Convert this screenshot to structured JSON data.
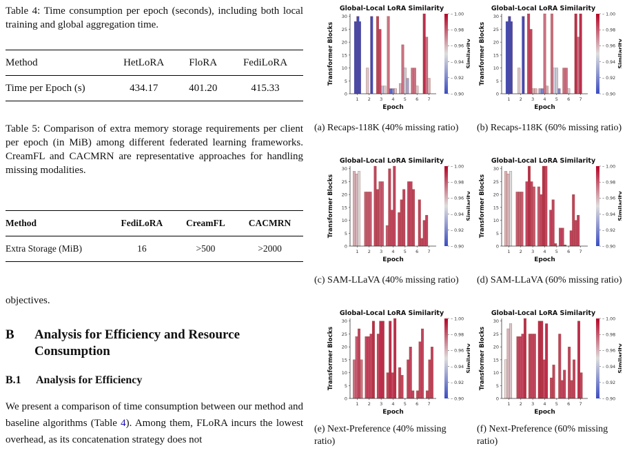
{
  "table4": {
    "caption": "Table 4: Time consumption per epoch (seconds), including both local training and global aggregation time.",
    "headers": [
      "Method",
      "HetLoRA",
      "FloRA",
      "FediLoRA"
    ],
    "row_label": "Time per Epoch (s)",
    "values": [
      "434.17",
      "401.20",
      "415.33"
    ]
  },
  "table5": {
    "caption": "Table 5: Comparison of extra memory storage requirements per client per epoch (in MiB) among different federated learning frameworks. CreamFL and CACMRN are representative approaches for handling missing modalities.",
    "headers": [
      "Method",
      "FediLoRA",
      "CreamFL",
      "CACMRN"
    ],
    "row_label": "Extra Storage (MiB)",
    "values": [
      "16",
      ">500",
      ">2000"
    ]
  },
  "body": {
    "objectives": "objectives.",
    "section_b_num": "B",
    "section_b_title": "Analysis for Efficiency and Resource Consumption",
    "section_b1_num": "B.1",
    "section_b1_title": "Analysis for Efficiency",
    "para_1": "We present a comparison of time consumption between our method and baseline algorithms (Table ",
    "para_ref": "4",
    "para_2": "). Among them, FLoRA incurs the lowest overhead, as its concatenation strategy does not"
  },
  "chart_common": {
    "title": "Global-Local LoRA Similarity",
    "xlabel": "Epoch",
    "ylabel": "Transformer Blocks",
    "colorbar_label": "Similarity",
    "colorbar_ticks": [
      "1.00",
      "0.98",
      "0.96",
      "0.94",
      "0.92",
      "0.90"
    ],
    "x_ticks": [
      "1",
      "2",
      "3",
      "4",
      "5",
      "6",
      "7"
    ],
    "y_ticks": [
      "0",
      "5",
      "10",
      "15",
      "20",
      "25",
      "30"
    ]
  },
  "chart_data": [
    {
      "type": "bar",
      "caption": "(a) Recaps-118K (40% missing ratio)",
      "ylim": [
        0,
        31
      ],
      "colorscale": [
        0.9,
        1.0
      ],
      "bars": [
        {
          "x": 0.65,
          "y": 28,
          "sim": 0.9
        },
        {
          "x": 0.85,
          "y": 30,
          "sim": 0.9
        },
        {
          "x": 1.0,
          "y": 28,
          "sim": 0.9
        },
        {
          "x": 1.65,
          "y": 10,
          "sim": 0.955
        },
        {
          "x": 2.0,
          "y": 30,
          "sim": 0.9
        },
        {
          "x": 2.5,
          "y": 30,
          "sim": 0.985
        },
        {
          "x": 2.7,
          "y": 25,
          "sim": 0.985
        },
        {
          "x": 2.9,
          "y": 3,
          "sim": 0.94
        },
        {
          "x": 3.1,
          "y": 3,
          "sim": 0.955
        },
        {
          "x": 3.4,
          "y": 30,
          "sim": 0.975
        },
        {
          "x": 3.6,
          "y": 2,
          "sim": 0.91
        },
        {
          "x": 3.8,
          "y": 2,
          "sim": 0.92
        },
        {
          "x": 4.0,
          "y": 2,
          "sim": 0.955
        },
        {
          "x": 4.4,
          "y": 4,
          "sim": 0.96
        },
        {
          "x": 4.6,
          "y": 19,
          "sim": 0.975
        },
        {
          "x": 4.8,
          "y": 10,
          "sim": 0.945
        },
        {
          "x": 5.0,
          "y": 6,
          "sim": 0.93
        },
        {
          "x": 5.4,
          "y": 10,
          "sim": 0.975
        },
        {
          "x": 5.6,
          "y": 10,
          "sim": 0.975
        },
        {
          "x": 5.8,
          "y": 3,
          "sim": 0.955
        },
        {
          "x": 6.4,
          "y": 31,
          "sim": 0.99
        },
        {
          "x": 6.6,
          "y": 22,
          "sim": 0.975
        },
        {
          "x": 6.8,
          "y": 6,
          "sim": 0.96
        }
      ]
    },
    {
      "type": "bar",
      "caption": "(b) Recaps-118K (60% missing ratio)",
      "ylim": [
        0,
        31
      ],
      "colorscale": [
        0.9,
        1.0
      ],
      "bars": [
        {
          "x": 0.65,
          "y": 28,
          "sim": 0.9
        },
        {
          "x": 0.85,
          "y": 30,
          "sim": 0.9
        },
        {
          "x": 1.0,
          "y": 28,
          "sim": 0.9
        },
        {
          "x": 1.65,
          "y": 10,
          "sim": 0.955
        },
        {
          "x": 2.0,
          "y": 30,
          "sim": 0.9
        },
        {
          "x": 2.45,
          "y": 31,
          "sim": 0.985
        },
        {
          "x": 2.65,
          "y": 25,
          "sim": 0.985
        },
        {
          "x": 2.85,
          "y": 2,
          "sim": 0.96
        },
        {
          "x": 3.05,
          "y": 2,
          "sim": 0.96
        },
        {
          "x": 3.4,
          "y": 2,
          "sim": 0.93
        },
        {
          "x": 3.6,
          "y": 2,
          "sim": 0.92
        },
        {
          "x": 3.8,
          "y": 31,
          "sim": 0.975
        },
        {
          "x": 4.0,
          "y": 3,
          "sim": 0.96
        },
        {
          "x": 4.4,
          "y": 31,
          "sim": 0.975
        },
        {
          "x": 4.6,
          "y": 10,
          "sim": 0.945
        },
        {
          "x": 4.8,
          "y": 10,
          "sim": 0.945
        },
        {
          "x": 5.0,
          "y": 2,
          "sim": 0.92
        },
        {
          "x": 5.4,
          "y": 10,
          "sim": 0.975
        },
        {
          "x": 5.6,
          "y": 10,
          "sim": 0.975
        },
        {
          "x": 5.8,
          "y": 2,
          "sim": 0.955
        },
        {
          "x": 6.4,
          "y": 31,
          "sim": 0.99
        },
        {
          "x": 6.6,
          "y": 22,
          "sim": 0.975
        },
        {
          "x": 6.8,
          "y": 31,
          "sim": 0.99
        }
      ]
    },
    {
      "type": "bar",
      "caption": "(c) SAM-LLaVA (40% missing ratio)",
      "ylim": [
        0,
        31
      ],
      "colorscale": [
        0.9,
        1.0
      ],
      "bars": [
        {
          "x": 0.55,
          "y": 29,
          "sim": 0.96
        },
        {
          "x": 0.75,
          "y": 28,
          "sim": 0.96
        },
        {
          "x": 0.95,
          "y": 29,
          "sim": 0.95
        },
        {
          "x": 1.5,
          "y": 21,
          "sim": 0.98
        },
        {
          "x": 1.7,
          "y": 21,
          "sim": 0.98
        },
        {
          "x": 1.9,
          "y": 21,
          "sim": 0.98
        },
        {
          "x": 2.3,
          "y": 31,
          "sim": 0.985
        },
        {
          "x": 2.5,
          "y": 22,
          "sim": 0.985
        },
        {
          "x": 2.7,
          "y": 25,
          "sim": 0.98
        },
        {
          "x": 2.9,
          "y": 25,
          "sim": 0.98
        },
        {
          "x": 3.3,
          "y": 8,
          "sim": 0.98
        },
        {
          "x": 3.5,
          "y": 30,
          "sim": 0.985
        },
        {
          "x": 3.7,
          "y": 14,
          "sim": 0.985
        },
        {
          "x": 3.9,
          "y": 31,
          "sim": 0.985
        },
        {
          "x": 4.3,
          "y": 13,
          "sim": 0.985
        },
        {
          "x": 4.5,
          "y": 18,
          "sim": 0.985
        },
        {
          "x": 4.7,
          "y": 22,
          "sim": 0.985
        },
        {
          "x": 5.1,
          "y": 25,
          "sim": 0.985
        },
        {
          "x": 5.3,
          "y": 25,
          "sim": 0.985
        },
        {
          "x": 5.5,
          "y": 22,
          "sim": 0.985
        },
        {
          "x": 6.0,
          "y": 18,
          "sim": 0.985
        },
        {
          "x": 6.2,
          "y": 3,
          "sim": 0.985
        },
        {
          "x": 6.4,
          "y": 10,
          "sim": 0.985
        },
        {
          "x": 6.6,
          "y": 12,
          "sim": 0.985
        }
      ]
    },
    {
      "type": "bar",
      "caption": "(d) SAM-LLaVA (60% missing ratio)",
      "ylim": [
        0,
        31
      ],
      "colorscale": [
        0.9,
        1.0
      ],
      "bars": [
        {
          "x": 0.55,
          "y": 29,
          "sim": 0.96
        },
        {
          "x": 0.75,
          "y": 28,
          "sim": 0.96
        },
        {
          "x": 0.95,
          "y": 29,
          "sim": 0.95
        },
        {
          "x": 1.5,
          "y": 21,
          "sim": 0.98
        },
        {
          "x": 1.7,
          "y": 21,
          "sim": 0.98
        },
        {
          "x": 1.9,
          "y": 21,
          "sim": 0.98
        },
        {
          "x": 2.3,
          "y": 25,
          "sim": 0.985
        },
        {
          "x": 2.5,
          "y": 32,
          "sim": 0.99
        },
        {
          "x": 2.7,
          "y": 25,
          "sim": 0.985
        },
        {
          "x": 2.9,
          "y": 23,
          "sim": 0.98
        },
        {
          "x": 3.3,
          "y": 23,
          "sim": 0.98
        },
        {
          "x": 3.5,
          "y": 20,
          "sim": 0.985
        },
        {
          "x": 3.7,
          "y": 32,
          "sim": 0.99
        },
        {
          "x": 3.9,
          "y": 31,
          "sim": 0.985
        },
        {
          "x": 4.3,
          "y": 14,
          "sim": 0.985
        },
        {
          "x": 4.5,
          "y": 18,
          "sim": 0.985
        },
        {
          "x": 4.7,
          "y": 1,
          "sim": 0.985
        },
        {
          "x": 5.1,
          "y": 7,
          "sim": 0.985
        },
        {
          "x": 5.3,
          "y": 7,
          "sim": 0.985
        },
        {
          "x": 5.5,
          "y": 0.5,
          "sim": 0.985
        },
        {
          "x": 6.0,
          "y": 6,
          "sim": 0.985
        },
        {
          "x": 6.2,
          "y": 20,
          "sim": 0.985
        },
        {
          "x": 6.4,
          "y": 10,
          "sim": 0.985
        },
        {
          "x": 6.6,
          "y": 12,
          "sim": 0.985
        }
      ]
    },
    {
      "type": "bar",
      "caption": "(e) Next-Preference (40% missing ratio)",
      "ylim": [
        0,
        31
      ],
      "colorscale": [
        0.9,
        1.0
      ],
      "bars": [
        {
          "x": 0.55,
          "y": 15,
          "sim": 0.975
        },
        {
          "x": 0.75,
          "y": 24,
          "sim": 0.98
        },
        {
          "x": 0.95,
          "y": 27,
          "sim": 0.985
        },
        {
          "x": 1.15,
          "y": 15,
          "sim": 0.975
        },
        {
          "x": 1.55,
          "y": 24,
          "sim": 0.985
        },
        {
          "x": 1.75,
          "y": 24,
          "sim": 0.985
        },
        {
          "x": 1.95,
          "y": 25,
          "sim": 0.985
        },
        {
          "x": 2.15,
          "y": 30,
          "sim": 0.99
        },
        {
          "x": 2.55,
          "y": 25,
          "sim": 0.985
        },
        {
          "x": 2.75,
          "y": 30,
          "sim": 0.99
        },
        {
          "x": 2.95,
          "y": 30,
          "sim": 0.99
        },
        {
          "x": 3.35,
          "y": 10,
          "sim": 0.985
        },
        {
          "x": 3.55,
          "y": 30,
          "sim": 0.99
        },
        {
          "x": 3.75,
          "y": 10,
          "sim": 0.985
        },
        {
          "x": 3.95,
          "y": 31,
          "sim": 0.99
        },
        {
          "x": 4.35,
          "y": 12,
          "sim": 0.985
        },
        {
          "x": 4.55,
          "y": 9,
          "sim": 0.985
        },
        {
          "x": 5.05,
          "y": 15,
          "sim": 0.985
        },
        {
          "x": 5.25,
          "y": 20,
          "sim": 0.985
        },
        {
          "x": 5.45,
          "y": 3,
          "sim": 0.985
        },
        {
          "x": 5.85,
          "y": 3,
          "sim": 0.985
        },
        {
          "x": 6.05,
          "y": 22,
          "sim": 0.985
        },
        {
          "x": 6.25,
          "y": 27,
          "sim": 0.985
        },
        {
          "x": 6.65,
          "y": 3,
          "sim": 0.985
        },
        {
          "x": 6.85,
          "y": 15,
          "sim": 0.985
        },
        {
          "x": 7.05,
          "y": 20,
          "sim": 0.985
        }
      ]
    },
    {
      "type": "bar",
      "caption": "(f) Next-Preference (60% missing ratio)",
      "ylim": [
        0,
        31
      ],
      "colorscale": [
        0.9,
        1.0
      ],
      "bars": [
        {
          "x": 0.55,
          "y": 15,
          "sim": 0.95
        },
        {
          "x": 0.75,
          "y": 27,
          "sim": 0.96
        },
        {
          "x": 0.95,
          "y": 29,
          "sim": 0.955
        },
        {
          "x": 1.55,
          "y": 24,
          "sim": 0.985
        },
        {
          "x": 1.75,
          "y": 24,
          "sim": 0.985
        },
        {
          "x": 1.95,
          "y": 25,
          "sim": 0.985
        },
        {
          "x": 2.15,
          "y": 31,
          "sim": 0.99
        },
        {
          "x": 2.55,
          "y": 25,
          "sim": 0.985
        },
        {
          "x": 2.75,
          "y": 25,
          "sim": 0.985
        },
        {
          "x": 2.95,
          "y": 25,
          "sim": 0.985
        },
        {
          "x": 3.35,
          "y": 30,
          "sim": 0.99
        },
        {
          "x": 3.55,
          "y": 30,
          "sim": 0.99
        },
        {
          "x": 3.75,
          "y": 15,
          "sim": 0.985
        },
        {
          "x": 3.95,
          "y": 29,
          "sim": 0.99
        },
        {
          "x": 4.35,
          "y": 8,
          "sim": 0.985
        },
        {
          "x": 4.55,
          "y": 13,
          "sim": 0.985
        },
        {
          "x": 5.05,
          "y": 25,
          "sim": 0.985
        },
        {
          "x": 5.25,
          "y": 7,
          "sim": 0.985
        },
        {
          "x": 5.45,
          "y": 11,
          "sim": 0.985
        },
        {
          "x": 5.85,
          "y": 20,
          "sim": 0.985
        },
        {
          "x": 6.05,
          "y": 7,
          "sim": 0.985
        },
        {
          "x": 6.25,
          "y": 15,
          "sim": 0.985
        },
        {
          "x": 6.65,
          "y": 30,
          "sim": 0.99
        },
        {
          "x": 6.85,
          "y": 10,
          "sim": 0.985
        }
      ]
    }
  ]
}
